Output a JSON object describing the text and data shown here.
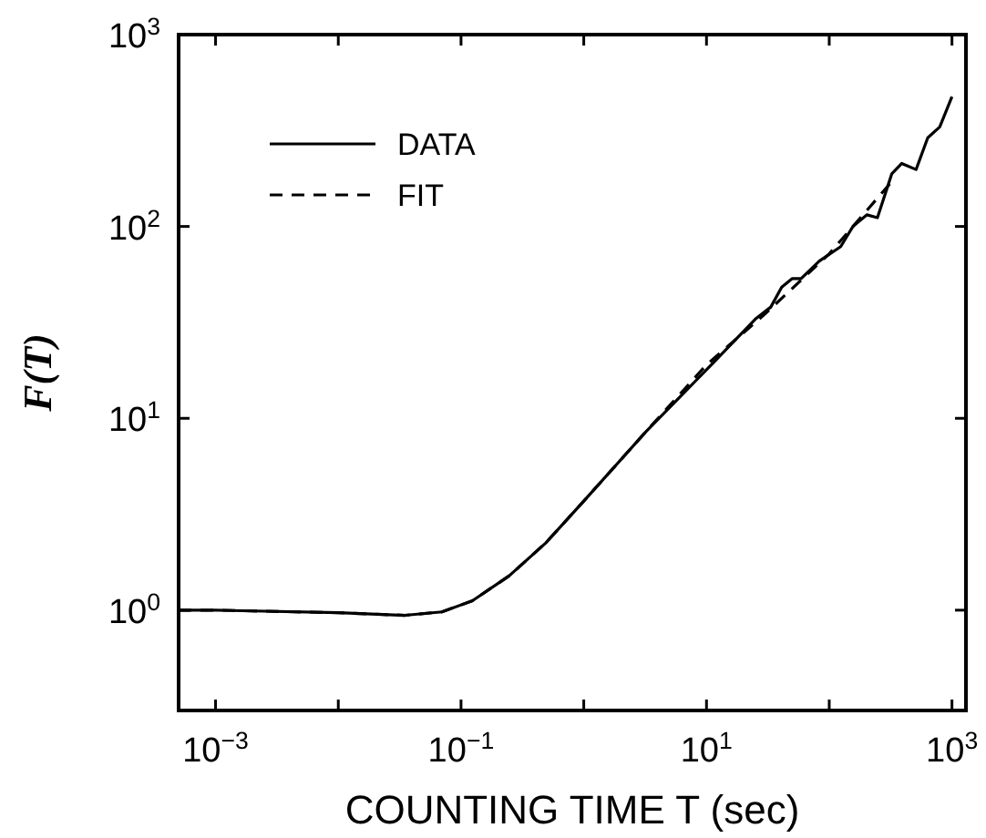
{
  "chart_data": {
    "type": "line",
    "xlabel": "COUNTING TIME T (sec)",
    "ylabel": "F(T)",
    "log": "xy",
    "grid": false,
    "legend": "top left",
    "marker": "none",
    "xlim": [
      0.0005,
      1300
    ],
    "ylim": [
      0.3,
      1000
    ],
    "xticks": [
      {
        "value": 0.001,
        "label": "10$^{−3}$"
      },
      {
        "value": 0.01,
        "label": null
      },
      {
        "value": 0.1,
        "label": "10$^{−1}$"
      },
      {
        "value": 1,
        "label": null
      },
      {
        "value": 10,
        "label": "10$^{1}$"
      },
      {
        "value": 100,
        "label": null
      },
      {
        "value": 1000,
        "label": "10$^{3}$"
      }
    ],
    "yticks": [
      {
        "value": 1,
        "label": "10$^{0}$"
      },
      {
        "value": 10,
        "label": "10$^{1}$"
      },
      {
        "value": 100,
        "label": "10$^{2}$"
      },
      {
        "value": 1000,
        "label": "10$^{3}$"
      }
    ],
    "series": [
      {
        "name": "DATA",
        "color": "#000000",
        "line_style": "solid",
        "x": [
          0.0005,
          0.001,
          0.01,
          0.035,
          0.07,
          0.124,
          0.247,
          0.49,
          1,
          3.2,
          11.2,
          25,
          33.4,
          41,
          50,
          59,
          83,
          124,
          156,
          203,
          247,
          323,
          390,
          510,
          635,
          795,
          1000
        ],
        "values": [
          1,
          1,
          0.97,
          0.94,
          0.98,
          1.12,
          1.51,
          2.24,
          3.7,
          8.5,
          19.3,
          32.9,
          38,
          48.3,
          53.5,
          53.5,
          66,
          78.5,
          100,
          115,
          111,
          188,
          213,
          198,
          290,
          330,
          475
        ]
      },
      {
        "name": "FIT",
        "color": "#000000",
        "line_style": "dashed",
        "x": [
          0.0005,
          0.001,
          0.01,
          0.035,
          0.07,
          0.124,
          0.247,
          0.49,
          1,
          3.2,
          10,
          30,
          100,
          320
        ],
        "values": [
          1,
          1,
          0.97,
          0.94,
          0.98,
          1.12,
          1.51,
          2.24,
          3.7,
          8.5,
          19,
          35,
          72,
          170
        ]
      }
    ]
  }
}
